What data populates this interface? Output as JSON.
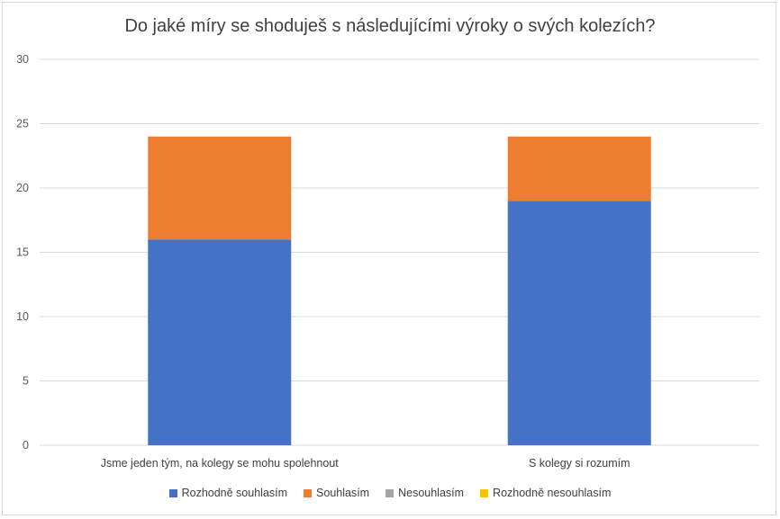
{
  "chart_data": {
    "type": "bar",
    "stacked": true,
    "title": "Do jaké míry se shoduješ s následujícími výroky o svých kolezích?",
    "categories": [
      "Jsme jeden tým, na kolegy se mohu spolehnout",
      "S kolegy si rozumím"
    ],
    "series": [
      {
        "name": "Rozhodně souhlasím",
        "color": "#4472c4",
        "values": [
          16,
          19
        ]
      },
      {
        "name": "Souhlasím",
        "color": "#ed7d31",
        "values": [
          8,
          5
        ]
      },
      {
        "name": "Nesouhlasím",
        "color": "#a5a5a5",
        "values": [
          0,
          0
        ]
      },
      {
        "name": "Rozhodně nesouhlasím",
        "color": "#ffc000",
        "values": [
          0,
          0
        ]
      }
    ],
    "ylim": [
      0,
      30
    ],
    "yticks": [
      0,
      5,
      10,
      15,
      20,
      25,
      30
    ],
    "grid": true,
    "legend_position": "bottom"
  }
}
